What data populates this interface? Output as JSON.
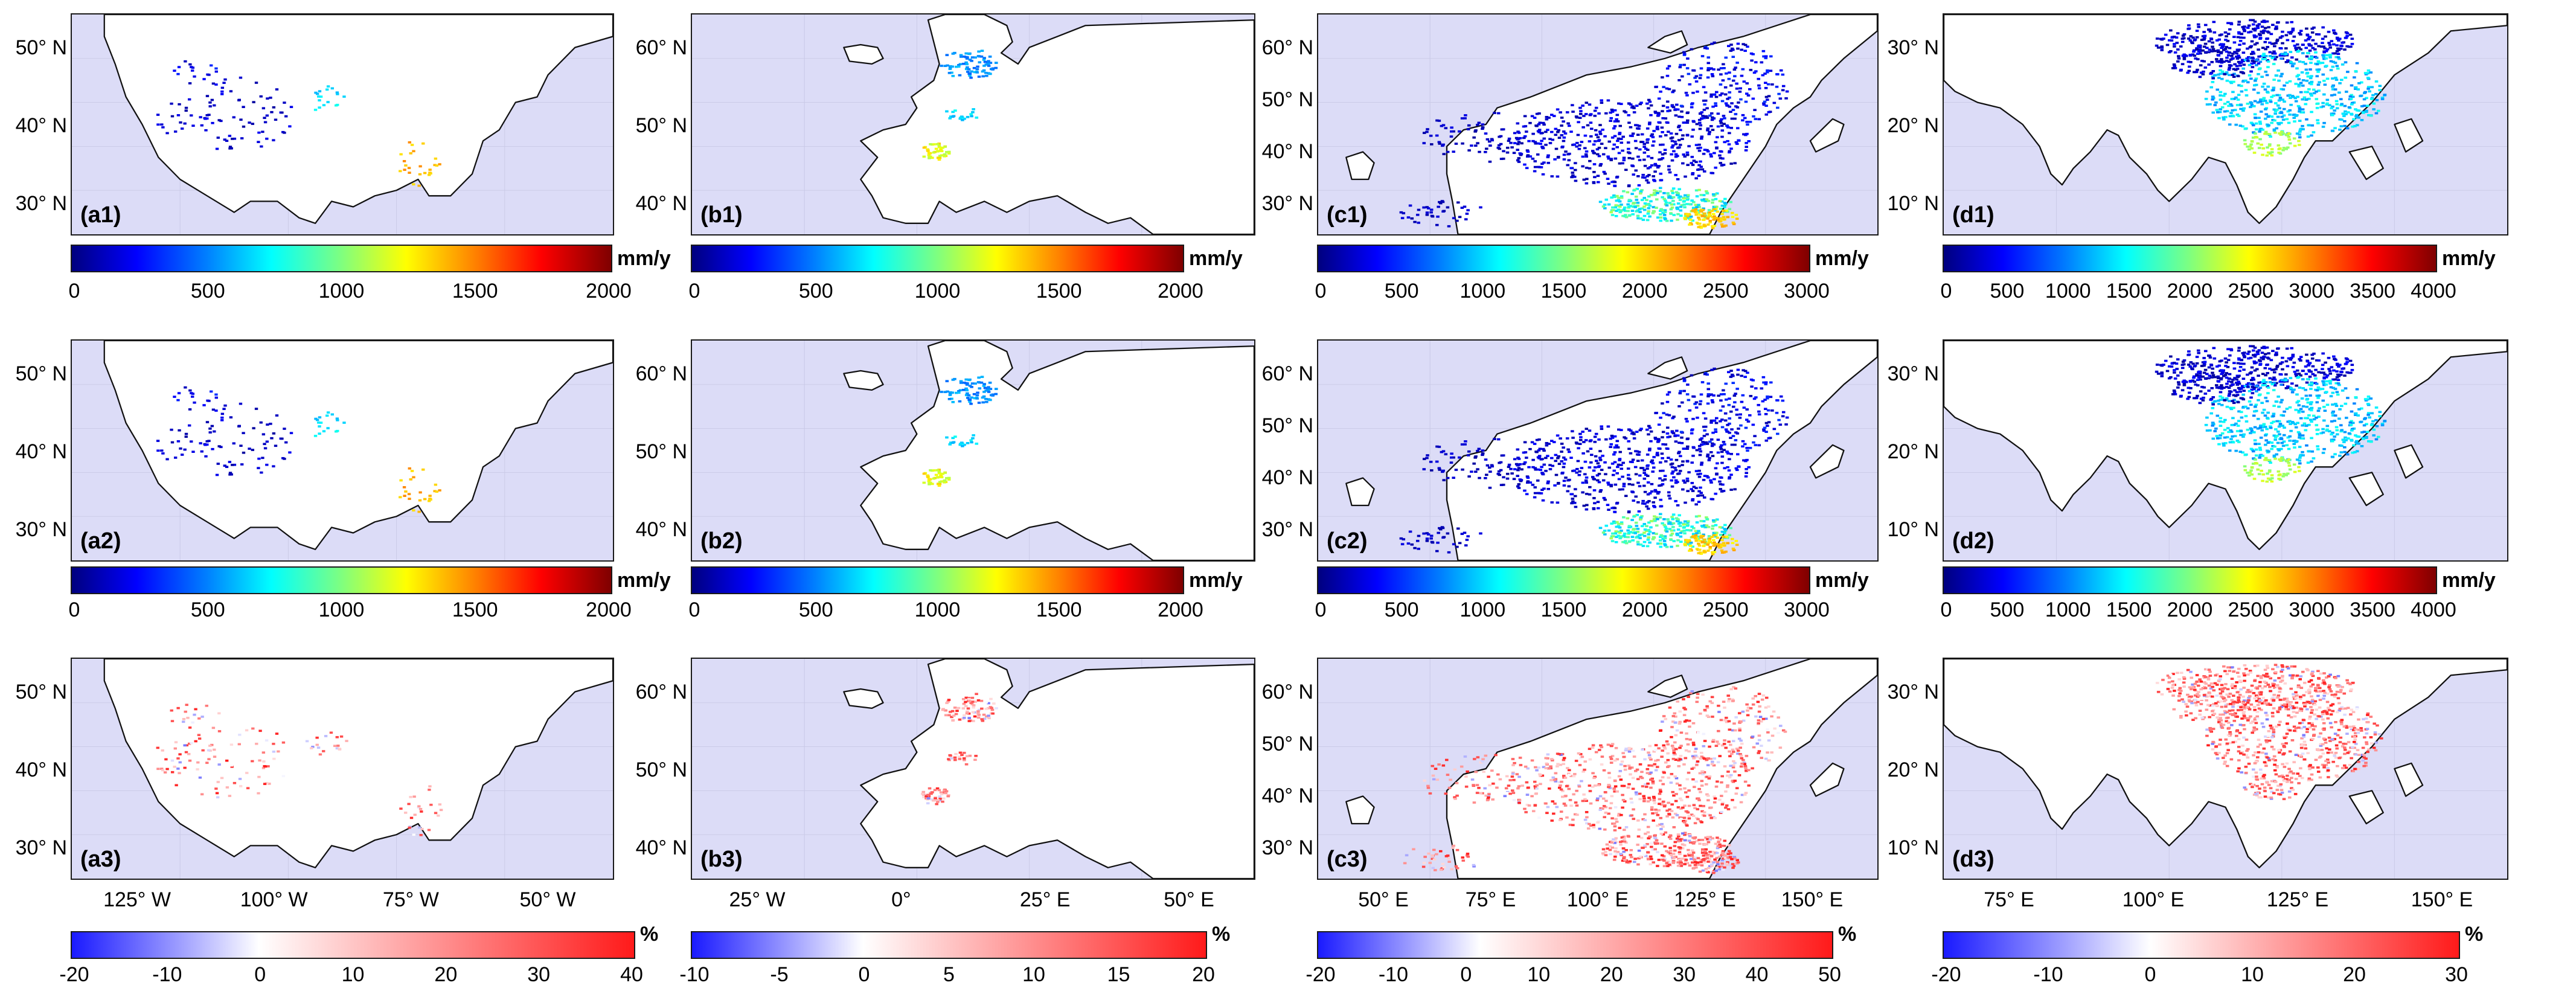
{
  "colors": {
    "ocean": "#dcdcf7",
    "coast": "#111111",
    "grid": "#c9c9e6"
  },
  "columns": {
    "a": {
      "lat_ticks": [
        "50° N",
        "40° N",
        "30° N"
      ],
      "lon_ticks": [
        "125° W",
        "100° W",
        "75° W",
        "50° W"
      ],
      "rows": [
        {
          "label": "(a1)",
          "unit": "mm/y",
          "ticks": [
            "0",
            "500",
            "1000",
            "1500",
            "2000"
          ]
        },
        {
          "label": "(a2)",
          "unit": "mm/y",
          "ticks": [
            "0",
            "500",
            "1000",
            "1500",
            "2000"
          ]
        },
        {
          "label": "(a3)",
          "unit": "%",
          "ticks": [
            "-20",
            "-10",
            "0",
            "10",
            "20",
            "30",
            "40"
          ]
        }
      ]
    },
    "b": {
      "lat_ticks": [
        "60° N",
        "50° N",
        "40° N"
      ],
      "lon_ticks": [
        "25° W",
        "0°",
        "25° E",
        "50° E"
      ],
      "rows": [
        {
          "label": "(b1)",
          "unit": "mm/y",
          "ticks": [
            "0",
            "500",
            "1000",
            "1500",
            "2000"
          ]
        },
        {
          "label": "(b2)",
          "unit": "mm/y",
          "ticks": [
            "0",
            "500",
            "1000",
            "1500",
            "2000"
          ]
        },
        {
          "label": "(b3)",
          "unit": "%",
          "ticks": [
            "-10",
            "-5",
            "0",
            "5",
            "10",
            "15",
            "20"
          ]
        }
      ]
    },
    "c": {
      "lat_ticks": [
        "60° N",
        "50° N",
        "40° N",
        "30° N"
      ],
      "lon_ticks": [
        "50° E",
        "75° E",
        "100° E",
        "125° E",
        "150° E"
      ],
      "rows": [
        {
          "label": "(c1)",
          "unit": "mm/y",
          "ticks": [
            "0",
            "500",
            "1000",
            "1500",
            "2000",
            "2500",
            "3000"
          ]
        },
        {
          "label": "(c2)",
          "unit": "mm/y",
          "ticks": [
            "0",
            "500",
            "1000",
            "1500",
            "2000",
            "2500",
            "3000"
          ]
        },
        {
          "label": "(c3)",
          "unit": "%",
          "ticks": [
            "-20",
            "-10",
            "0",
            "10",
            "20",
            "30",
            "40",
            "50"
          ]
        }
      ]
    },
    "d": {
      "lat_ticks": [
        "30° N",
        "20° N",
        "10° N"
      ],
      "lon_ticks": [
        "75° E",
        "100° E",
        "125° E",
        "150° E"
      ],
      "rows": [
        {
          "label": "(d1)",
          "unit": "mm/y",
          "ticks": [
            "0",
            "500",
            "1000",
            "1500",
            "2000",
            "2500",
            "3000",
            "3500",
            "4000"
          ]
        },
        {
          "label": "(d2)",
          "unit": "mm/y",
          "ticks": [
            "0",
            "500",
            "1000",
            "1500",
            "2000",
            "2500",
            "3000",
            "3500",
            "4000"
          ]
        },
        {
          "label": "(d3)",
          "unit": "%",
          "ticks": [
            "-20",
            "-10",
            "0",
            "10",
            "20",
            "30"
          ]
        }
      ]
    }
  }
}
